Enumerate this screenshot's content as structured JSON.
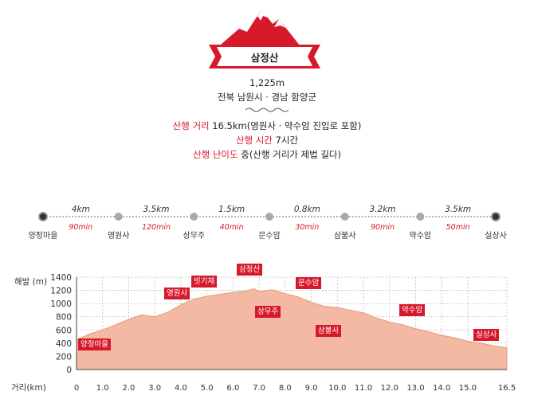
{
  "header": {
    "mountain_name": "삼정산",
    "elevation": "1,225m",
    "region": "전북 남원시 · 경남 함양군",
    "distance_label": "산행 거리",
    "distance_value": "16.5km(영원사 · 약수암 진입로 포함)",
    "time_label": "산행 시간",
    "time_value": "7시간",
    "difficulty_label": "산행 난이도",
    "difficulty_value": "중(산행 거리가 제법 길다)"
  },
  "route": {
    "stops": [
      "양정마을",
      "영원사",
      "상무주",
      "문수암",
      "삼불사",
      "약수암",
      "실상사"
    ],
    "segments": [
      {
        "distance": "4km",
        "time": "90min"
      },
      {
        "distance": "3.5km",
        "time": "120min"
      },
      {
        "distance": "1.5km",
        "time": "40min"
      },
      {
        "distance": "0.8km",
        "time": "30min"
      },
      {
        "distance": "3.2km",
        "time": "90min"
      },
      {
        "distance": "3.5km",
        "time": "50min"
      }
    ]
  },
  "colors": {
    "accent": "#d7192c",
    "profile_fill": "#f3b9a2",
    "profile_stroke": "#e8997c"
  },
  "chart_data": {
    "type": "area",
    "ylabel": "해발 (m)",
    "xlabel": "거리(km)",
    "ylim": [
      0,
      1400
    ],
    "xlim": [
      0,
      16.5
    ],
    "y_ticks": [
      "0",
      "200",
      "400",
      "600",
      "800",
      "1000",
      "1200",
      "1400"
    ],
    "x_ticks": [
      "0",
      "1.0",
      "2.0",
      "3.0",
      "4.0",
      "5.0",
      "6.0",
      "7.0",
      "8.0",
      "9.0",
      "10.0",
      "11.0",
      "12.0",
      "13.0",
      "14.0",
      "15.0",
      "16.5"
    ],
    "profile": {
      "x": [
        0,
        0.5,
        1.0,
        1.5,
        2.0,
        2.5,
        3.0,
        3.5,
        4.0,
        4.5,
        5.0,
        5.5,
        6.0,
        6.5,
        6.8,
        7.0,
        7.5,
        8.0,
        8.5,
        9.0,
        9.5,
        10.0,
        10.5,
        11.0,
        11.5,
        12.0,
        12.5,
        13.0,
        13.5,
        14.0,
        14.5,
        15.0,
        15.5,
        16.0,
        16.5
      ],
      "y": [
        450,
        540,
        600,
        680,
        760,
        830,
        800,
        870,
        980,
        1070,
        1110,
        1140,
        1170,
        1190,
        1225,
        1180,
        1210,
        1150,
        1100,
        1020,
        960,
        940,
        900,
        860,
        780,
        720,
        680,
        620,
        570,
        520,
        480,
        430,
        400,
        360,
        330
      ]
    },
    "annotations": [
      {
        "label": "양정마을",
        "x": 0.0
      },
      {
        "label": "영원사",
        "x": 3.8
      },
      {
        "label": "빗기재",
        "x": 4.7
      },
      {
        "label": "삼정산",
        "x": 6.8
      },
      {
        "label": "상무주",
        "x": 7.2
      },
      {
        "label": "문수암",
        "x": 8.8
      },
      {
        "label": "삼불사",
        "x": 9.6
      },
      {
        "label": "약수암",
        "x": 12.8
      },
      {
        "label": "실상사",
        "x": 16.3
      }
    ]
  }
}
